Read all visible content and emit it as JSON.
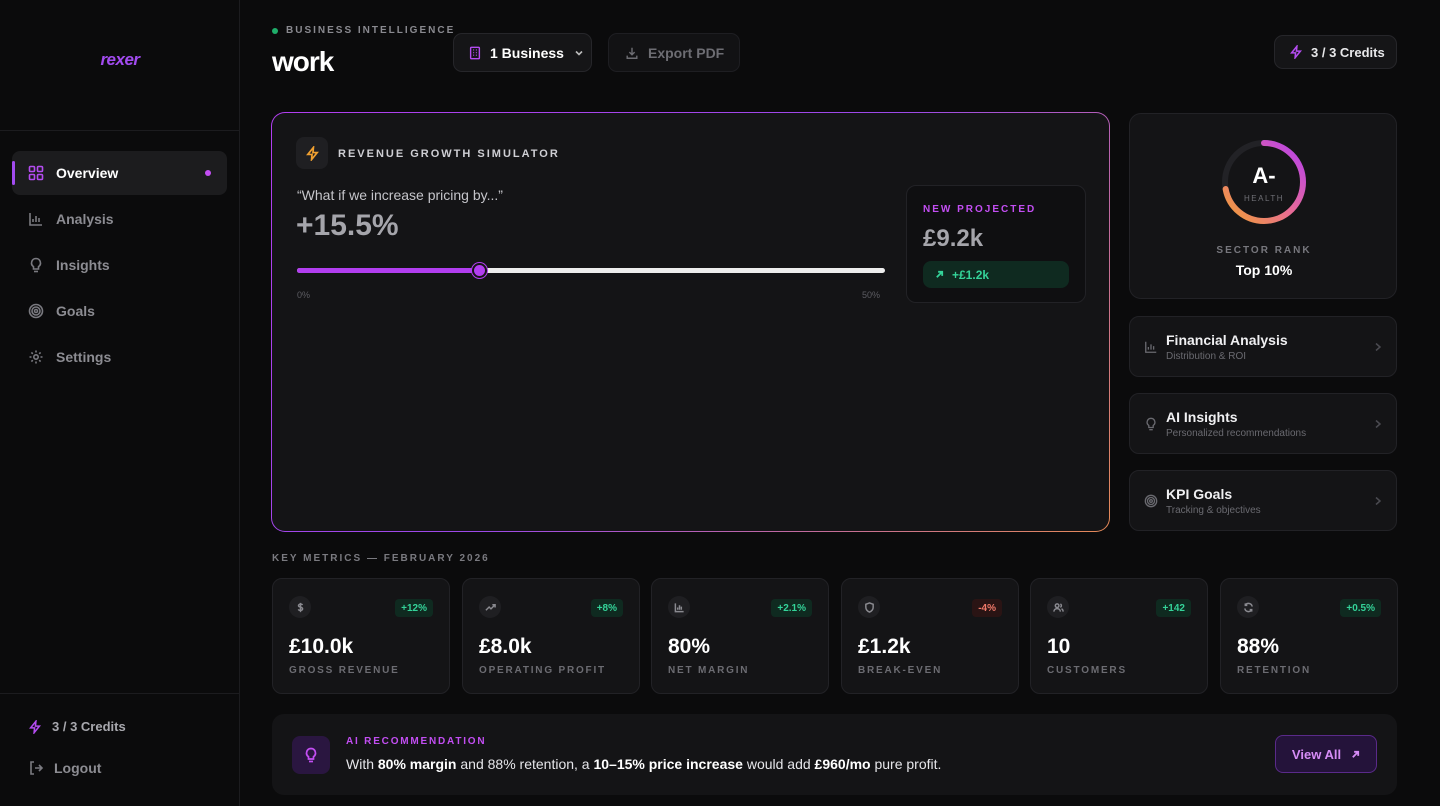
{
  "brand": {
    "logo_text": "rexer"
  },
  "sidebar": {
    "items": [
      {
        "label": "Overview",
        "icon": "grid-icon",
        "active": true
      },
      {
        "label": "Analysis",
        "icon": "bar-chart-icon"
      },
      {
        "label": "Insights",
        "icon": "lightbulb-icon"
      },
      {
        "label": "Goals",
        "icon": "target-icon"
      },
      {
        "label": "Settings",
        "icon": "gear-icon"
      }
    ],
    "credits": "3 / 3 Credits",
    "logout": "Logout"
  },
  "header": {
    "eyebrow": "BUSINESS INTELLIGENCE",
    "title": "work",
    "business_button": "1 Business",
    "export_button": "Export PDF",
    "credits": "3 / 3 Credits"
  },
  "simulator": {
    "title": "REVENUE GROWTH SIMULATOR",
    "question": "“What if we increase pricing by...”",
    "value_text": "+15.5%",
    "slider_value": 15.5,
    "slider_min": 0,
    "slider_max": 50,
    "min_label": "0%",
    "max_label": "50%",
    "projected_label": "NEW PROJECTED",
    "projected_value": "£9.2k",
    "projected_delta": "+£1.2k"
  },
  "health": {
    "grade": "A-",
    "label": "HEALTH",
    "score_fraction": 0.72,
    "rank_label": "SECTOR RANK",
    "rank_value": "Top 10%"
  },
  "quick_links": [
    {
      "title": "Financial Analysis",
      "subtitle": "Distribution & ROI",
      "icon": "bar-chart-icon"
    },
    {
      "title": "AI Insights",
      "subtitle": "Personalized recommendations",
      "icon": "lightbulb-icon"
    },
    {
      "title": "KPI Goals",
      "subtitle": "Tracking & objectives",
      "icon": "target-icon"
    }
  ],
  "metrics_title": "KEY METRICS — FEBRUARY 2026",
  "metrics": [
    {
      "value": "£10.0k",
      "label": "GROSS REVENUE",
      "delta": "+12%",
      "trend": "pos",
      "icon": "dollar-icon"
    },
    {
      "value": "£8.0k",
      "label": "OPERATING PROFIT",
      "delta": "+8%",
      "trend": "pos",
      "icon": "trending-up-icon"
    },
    {
      "value": "80%",
      "label": "NET MARGIN",
      "delta": "+2.1%",
      "trend": "pos",
      "icon": "bar-chart-icon"
    },
    {
      "value": "£1.2k",
      "label": "BREAK-EVEN",
      "delta": "-4%",
      "trend": "neg",
      "icon": "shield-icon"
    },
    {
      "value": "10",
      "label": "CUSTOMERS",
      "delta": "+142",
      "trend": "pos",
      "icon": "users-icon"
    },
    {
      "value": "88%",
      "label": "RETENTION",
      "delta": "+0.5%",
      "trend": "pos",
      "icon": "refresh-icon"
    }
  ],
  "recommendation": {
    "label": "AI RECOMMENDATION",
    "t1": "With ",
    "b1": "80% margin",
    "t2": " and 88% retention, a ",
    "b2": "10–15% price increase",
    "t3": " would add ",
    "b3": "£960/mo",
    "t4": " pure profit.",
    "button": "View All"
  },
  "colors": {
    "accent": "#b23ef0",
    "positive": "#34d399",
    "negative": "#f27a6a",
    "warning": "#f0a030"
  }
}
